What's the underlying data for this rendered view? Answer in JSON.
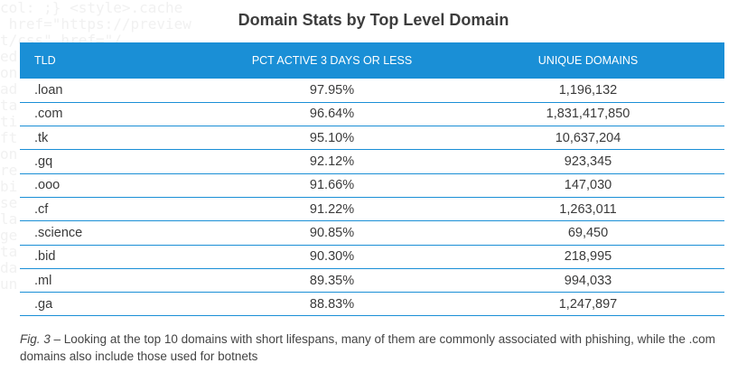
{
  "chart_data": {
    "type": "table",
    "title": "Domain Stats by Top Level Domain",
    "columns": [
      "TLD",
      "PCT ACTIVE 3 DAYS OR LESS",
      "UNIQUE DOMAINS"
    ],
    "rows": [
      [
        ".loan",
        "97.95%",
        "1,196,132"
      ],
      [
        ".com",
        "96.64%",
        "1,831,417,850"
      ],
      [
        ".tk",
        "95.10%",
        "10,637,204"
      ],
      [
        ".gq",
        "92.12%",
        "923,345"
      ],
      [
        ".ooo",
        "91.66%",
        "147,030"
      ],
      [
        ".cf",
        "91.22%",
        "1,263,011"
      ],
      [
        ".science",
        "90.85%",
        "69,450"
      ],
      [
        ".bid",
        "90.30%",
        "218,995"
      ],
      [
        ".ml",
        "89.35%",
        "994,033"
      ],
      [
        ".ga",
        "88.83%",
        "1,247,897"
      ]
    ]
  },
  "caption": {
    "fig_label": "Fig. 3",
    "text": " – Looking at the top 10 domains with short lifespans, many of them are commonly associated with phishing, while the .com domains also include those used for botnets"
  },
  "colors": {
    "header_bg": "#1a8fd6",
    "row_rule": "#1a8fd6"
  }
}
